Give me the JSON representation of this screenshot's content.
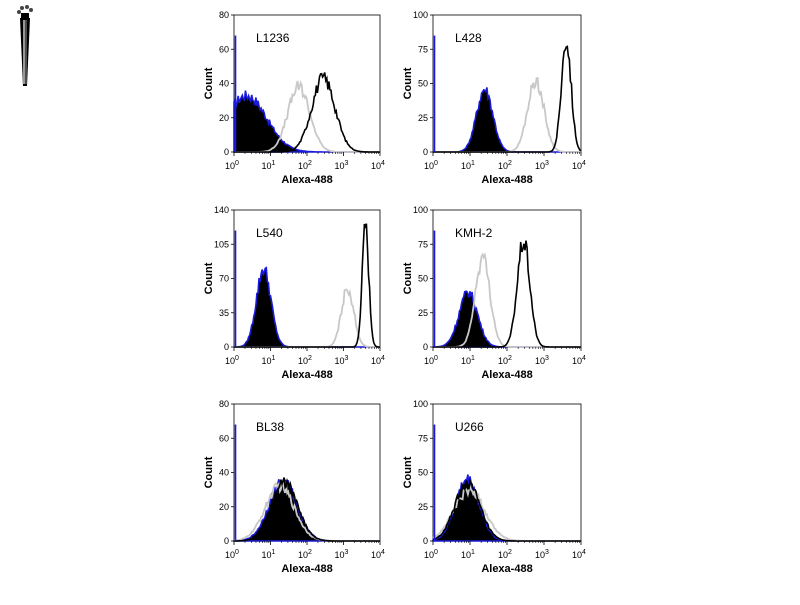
{
  "colors": {
    "background": "#ffffff",
    "filled": "#000000",
    "isotype": "#1a1adc",
    "gray_curve": "#c8c8c8",
    "black_curve": "#000000"
  },
  "chart_data": [
    {
      "type": "area",
      "title": "L1236",
      "xlabel": "Alexa-488",
      "ylabel": "Count",
      "xscale": "log",
      "xlim": [
        1,
        10000
      ],
      "ylim": [
        0,
        80
      ],
      "yticks": [
        0,
        20,
        40,
        60,
        80
      ],
      "xticks": [
        "10",
        "10",
        "10",
        "10",
        "10"
      ],
      "xtick_exponents": [
        "0",
        "1",
        "2",
        "3",
        "4"
      ],
      "series": [
        {
          "name": "isotype control",
          "style": "filled",
          "peak_x": 2.2,
          "peak_y": 33,
          "width": 0.55
        },
        {
          "name": "stained (gray)",
          "style": "gray",
          "peak_x": 60,
          "peak_y": 38,
          "width": 0.3
        },
        {
          "name": "stained (black)",
          "style": "black",
          "peak_x": 280,
          "peak_y": 43,
          "width": 0.32
        }
      ]
    },
    {
      "type": "area",
      "title": "L428",
      "xlabel": "Alexa-488",
      "ylabel": "Count",
      "xscale": "log",
      "xlim": [
        1,
        10000
      ],
      "ylim": [
        0,
        100
      ],
      "yticks": [
        0,
        25,
        50,
        75,
        100
      ],
      "xticks": [
        "10",
        "10",
        "10",
        "10",
        "10"
      ],
      "xtick_exponents": [
        "0",
        "1",
        "2",
        "3",
        "4"
      ],
      "series": [
        {
          "name": "isotype control",
          "style": "filled",
          "peak_x": 25,
          "peak_y": 46,
          "width": 0.22
        },
        {
          "name": "stained (gray)",
          "style": "gray",
          "peak_x": 600,
          "peak_y": 52,
          "width": 0.22
        },
        {
          "name": "stained (black)",
          "style": "black",
          "peak_x": 4000,
          "peak_y": 83,
          "width": 0.13
        }
      ]
    },
    {
      "type": "area",
      "title": "L540",
      "xlabel": "Alexa-488",
      "ylabel": "Count",
      "xscale": "log",
      "xlim": [
        1,
        10000
      ],
      "ylim": [
        0,
        140
      ],
      "yticks": [
        0,
        35,
        70,
        105,
        140
      ],
      "xticks": [
        "10",
        "10",
        "10",
        "10",
        "10"
      ],
      "xtick_exponents": [
        "0",
        "1",
        "2",
        "3",
        "4"
      ],
      "series": [
        {
          "name": "isotype control",
          "style": "filled",
          "peak_x": 6.5,
          "peak_y": 80,
          "width": 0.2
        },
        {
          "name": "stained (gray)",
          "style": "gray",
          "peak_x": 1300,
          "peak_y": 60,
          "width": 0.17
        },
        {
          "name": "stained (black)",
          "style": "black",
          "peak_x": 4000,
          "peak_y": 122,
          "width": 0.09
        }
      ]
    },
    {
      "type": "area",
      "title": "KMH-2",
      "xlabel": "Alexa-488",
      "ylabel": "Count",
      "xscale": "log",
      "xlim": [
        1,
        10000
      ],
      "ylim": [
        0,
        100
      ],
      "yticks": [
        0,
        25,
        50,
        75,
        100
      ],
      "xticks": [
        "10",
        "10",
        "10",
        "10",
        "10"
      ],
      "xtick_exponents": [
        "0",
        "1",
        "2",
        "3",
        "4"
      ],
      "series": [
        {
          "name": "isotype control",
          "style": "filled",
          "peak_x": 9,
          "peak_y": 40,
          "width": 0.25
        },
        {
          "name": "stained (gray)",
          "style": "gray",
          "peak_x": 22,
          "peak_y": 65,
          "width": 0.2
        },
        {
          "name": "stained (black)",
          "style": "black",
          "peak_x": 280,
          "peak_y": 77,
          "width": 0.17
        }
      ]
    },
    {
      "type": "area",
      "title": "BL38",
      "xlabel": "Alexa-488",
      "ylabel": "Count",
      "xscale": "log",
      "xlim": [
        1,
        10000
      ],
      "ylim": [
        0,
        80
      ],
      "yticks": [
        0,
        20,
        40,
        60,
        80
      ],
      "xticks": [
        "10",
        "10",
        "10",
        "10",
        "10"
      ],
      "xtick_exponents": [
        "0",
        "1",
        "2",
        "3",
        "4"
      ],
      "series": [
        {
          "name": "isotype control",
          "style": "filled",
          "peak_x": 22,
          "peak_y": 35,
          "width": 0.38
        },
        {
          "name": "stained (gray)",
          "style": "gray",
          "peak_x": 18,
          "peak_y": 32,
          "width": 0.4
        },
        {
          "name": "stained (black)",
          "style": "black",
          "peak_x": 24,
          "peak_y": 34,
          "width": 0.36
        }
      ]
    },
    {
      "type": "area",
      "title": "U266",
      "xlabel": "Alexa-488",
      "ylabel": "Count",
      "xscale": "log",
      "xlim": [
        1,
        10000
      ],
      "ylim": [
        0,
        100
      ],
      "yticks": [
        0,
        25,
        50,
        75,
        100
      ],
      "xticks": [
        "10",
        "10",
        "10",
        "10",
        "10"
      ],
      "xtick_exponents": [
        "0",
        "1",
        "2",
        "3",
        "4"
      ],
      "series": [
        {
          "name": "isotype control",
          "style": "filled",
          "peak_x": 8.5,
          "peak_y": 45,
          "width": 0.32
        },
        {
          "name": "stained (gray)",
          "style": "gray",
          "peak_x": 9.5,
          "peak_y": 37,
          "width": 0.42
        },
        {
          "name": "stained (black)",
          "style": "black",
          "peak_x": 8.5,
          "peak_y": 42,
          "width": 0.34
        }
      ]
    }
  ]
}
